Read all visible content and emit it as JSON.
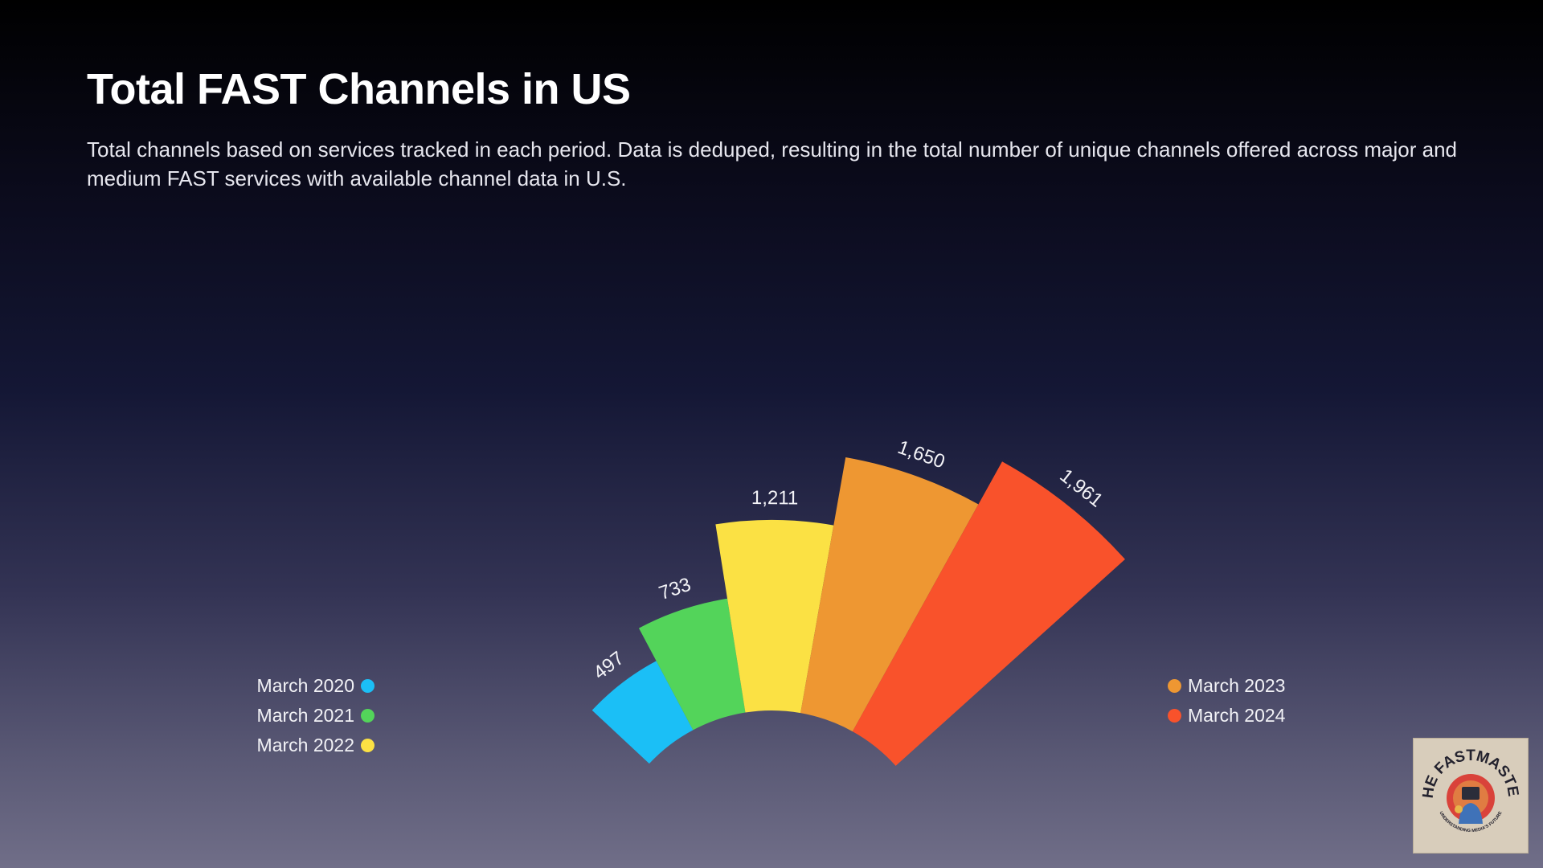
{
  "title": "Total FAST Channels in US",
  "subtitle": "Total channels based on services tracked in each period. Data is deduped, resulting in the total number of unique channels offered across major and medium FAST services with available channel data in U.S.",
  "chart_data": {
    "type": "radial-bar",
    "categories": [
      "March 2020",
      "March 2021",
      "March 2022",
      "March 2023",
      "March 2024"
    ],
    "values": [
      497,
      733,
      1211,
      1650,
      1961
    ],
    "value_labels": [
      "497",
      "733",
      "1,211",
      "1,650",
      "1,961"
    ],
    "colors": [
      "#1bbff6",
      "#53d45a",
      "#fbe144",
      "#ee9732",
      "#f9522b"
    ],
    "legend": {
      "left": [
        "March 2020",
        "March 2021",
        "March 2022"
      ],
      "right": [
        "March 2023",
        "March 2024"
      ]
    }
  },
  "logo": {
    "text": "THE FASTMASTER",
    "tagline": "UNDERSTANDING MEDIA'S FUTURE",
    "colors": {
      "background": "#d8cdbb",
      "ring": "#d9423a",
      "figure": "#3f72b8",
      "text": "#23222e"
    }
  }
}
